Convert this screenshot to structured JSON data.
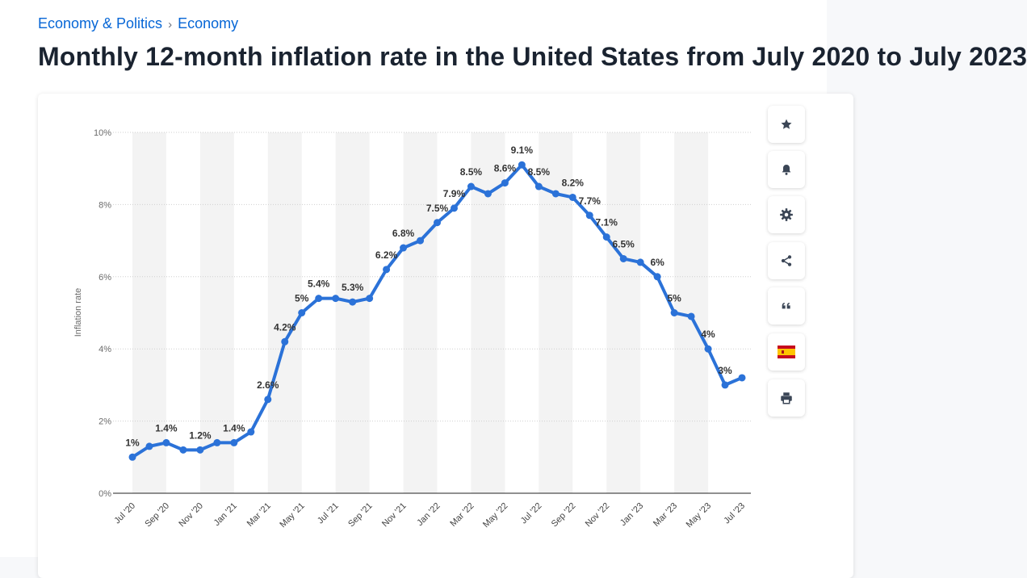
{
  "breadcrumb": {
    "items": [
      "Economy & Politics",
      "Economy"
    ],
    "separator": "›"
  },
  "page_title": "Monthly 12-month inflation rate in the United States from July 2020 to July 2023",
  "toolbar": [
    {
      "icon": "star-icon",
      "name": "favorite-button"
    },
    {
      "icon": "bell-icon",
      "name": "notification-button"
    },
    {
      "icon": "gear-icon",
      "name": "settings-button"
    },
    {
      "icon": "share-icon",
      "name": "share-button"
    },
    {
      "icon": "quote-icon",
      "name": "cite-button"
    },
    {
      "icon": "spain-flag-icon",
      "name": "language-button"
    },
    {
      "icon": "printer-icon",
      "name": "print-button"
    }
  ],
  "colors": {
    "line": "#2b72d8",
    "link": "#0666d6",
    "title": "#1a2330",
    "stripe": "#f3f3f3",
    "grid": "#cfcfcf",
    "axis_text": "#6b6b6b",
    "label_text": "#333333"
  },
  "chart_data": {
    "type": "line",
    "title": "",
    "xlabel": "",
    "ylabel": "Inflation rate",
    "ylim": [
      0,
      10
    ],
    "yticks": [
      0,
      2,
      4,
      6,
      8,
      10
    ],
    "ytick_labels": [
      "0%",
      "2%",
      "4%",
      "6%",
      "8%",
      "10%"
    ],
    "grid": true,
    "categories": [
      "Jul '20",
      "Aug '20",
      "Sep '20",
      "Oct '20",
      "Nov '20",
      "Dec '20",
      "Jan '21",
      "Feb '21",
      "Mar '21",
      "Apr '21",
      "May '21",
      "Jun '21",
      "Jul '21",
      "Aug '21",
      "Sep '21",
      "Oct '21",
      "Nov '21",
      "Dec '21",
      "Jan '22",
      "Feb '22",
      "Mar '22",
      "Apr '22",
      "May '22",
      "Jun '22",
      "Jul '22",
      "Aug '22",
      "Sep '22",
      "Oct '22",
      "Nov '22",
      "Dec '22",
      "Jan '23",
      "Feb '23",
      "Mar '23",
      "Apr '23",
      "May '23",
      "Jun '23",
      "Jul '23"
    ],
    "xtick_labels": [
      "Jul '20",
      "Sep '20",
      "Nov '20",
      "Jan '21",
      "Mar '21",
      "May '21",
      "Jul '21",
      "Sep '21",
      "Nov '21",
      "Jan '22",
      "Mar '22",
      "May '22",
      "Jul '22",
      "Sep '22",
      "Nov '22",
      "Jan '23",
      "Mar '23",
      "May '23",
      "Jul '23"
    ],
    "series": [
      {
        "name": "Inflation rate",
        "values": [
          1.0,
          1.3,
          1.4,
          1.2,
          1.2,
          1.4,
          1.4,
          1.7,
          2.6,
          4.2,
          5.0,
          5.4,
          5.4,
          5.3,
          5.4,
          6.2,
          6.8,
          7.0,
          7.5,
          7.9,
          8.5,
          8.3,
          8.6,
          9.1,
          8.5,
          8.3,
          8.2,
          7.7,
          7.1,
          6.5,
          6.4,
          6.0,
          5.0,
          4.9,
          4.0,
          3.0,
          3.2
        ]
      }
    ],
    "data_labels": [
      {
        "index": 0,
        "text": "1%"
      },
      {
        "index": 2,
        "text": "1.4%"
      },
      {
        "index": 4,
        "text": "1.2%"
      },
      {
        "index": 6,
        "text": "1.4%"
      },
      {
        "index": 8,
        "text": "2.6%"
      },
      {
        "index": 9,
        "text": "4.2%"
      },
      {
        "index": 10,
        "text": "5%"
      },
      {
        "index": 11,
        "text": "5.4%"
      },
      {
        "index": 13,
        "text": "5.3%"
      },
      {
        "index": 15,
        "text": "6.2%"
      },
      {
        "index": 16,
        "text": "6.8%"
      },
      {
        "index": 18,
        "text": "7.5%"
      },
      {
        "index": 19,
        "text": "7.9%"
      },
      {
        "index": 20,
        "text": "8.5%"
      },
      {
        "index": 22,
        "text": "8.6%"
      },
      {
        "index": 23,
        "text": "9.1%"
      },
      {
        "index": 24,
        "text": "8.5%"
      },
      {
        "index": 26,
        "text": "8.2%"
      },
      {
        "index": 27,
        "text": "7.7%"
      },
      {
        "index": 28,
        "text": "7.1%"
      },
      {
        "index": 29,
        "text": "6.5%"
      },
      {
        "index": 31,
        "text": "6%"
      },
      {
        "index": 32,
        "text": "5%"
      },
      {
        "index": 34,
        "text": "4%"
      },
      {
        "index": 35,
        "text": "3%"
      }
    ]
  }
}
